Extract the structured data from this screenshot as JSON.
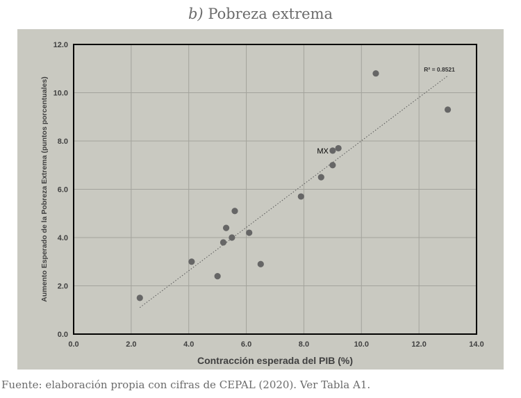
{
  "title_prefix": "b)",
  "title_text": "Pobreza extrema",
  "source": {
    "prefix": "Fuente: elaboración propia con cifras de ",
    "org": "CEPAL",
    "suffix": " (2020). Ver Tabla A1."
  },
  "chart_data": {
    "type": "scatter",
    "xlabel": "Contracción esperada del PIB (%)",
    "ylabel": "Aumento Esperado de la Pobreza Extrema (puntos porcentuales)",
    "xlim": [
      0,
      14
    ],
    "ylim": [
      0,
      12
    ],
    "xticks": [
      "0.0",
      "2.0",
      "4.0",
      "6.0",
      "8.0",
      "10.0",
      "12.0",
      "14.0"
    ],
    "yticks": [
      "0.0",
      "2.0",
      "4.0",
      "6.0",
      "8.0",
      "10.0",
      "12.0"
    ],
    "grid": true,
    "point_color": "#666666",
    "points": [
      {
        "x": 2.3,
        "y": 1.5
      },
      {
        "x": 4.1,
        "y": 3.0
      },
      {
        "x": 5.0,
        "y": 2.4
      },
      {
        "x": 5.2,
        "y": 3.8
      },
      {
        "x": 5.3,
        "y": 4.4
      },
      {
        "x": 5.5,
        "y": 4.0
      },
      {
        "x": 5.6,
        "y": 5.1
      },
      {
        "x": 6.1,
        "y": 4.2
      },
      {
        "x": 6.5,
        "y": 2.9
      },
      {
        "x": 7.9,
        "y": 5.7
      },
      {
        "x": 8.6,
        "y": 6.5
      },
      {
        "x": 9.0,
        "y": 7.0
      },
      {
        "x": 9.0,
        "y": 7.6,
        "label": "MX"
      },
      {
        "x": 9.2,
        "y": 7.7
      },
      {
        "x": 10.5,
        "y": 10.8
      },
      {
        "x": 13.0,
        "y": 9.3
      }
    ],
    "trendline": {
      "x": [
        2.3,
        13.0
      ],
      "y": [
        1.1,
        10.7
      ],
      "style": "dotted"
    },
    "r2_label": "R² = 0.8521"
  }
}
